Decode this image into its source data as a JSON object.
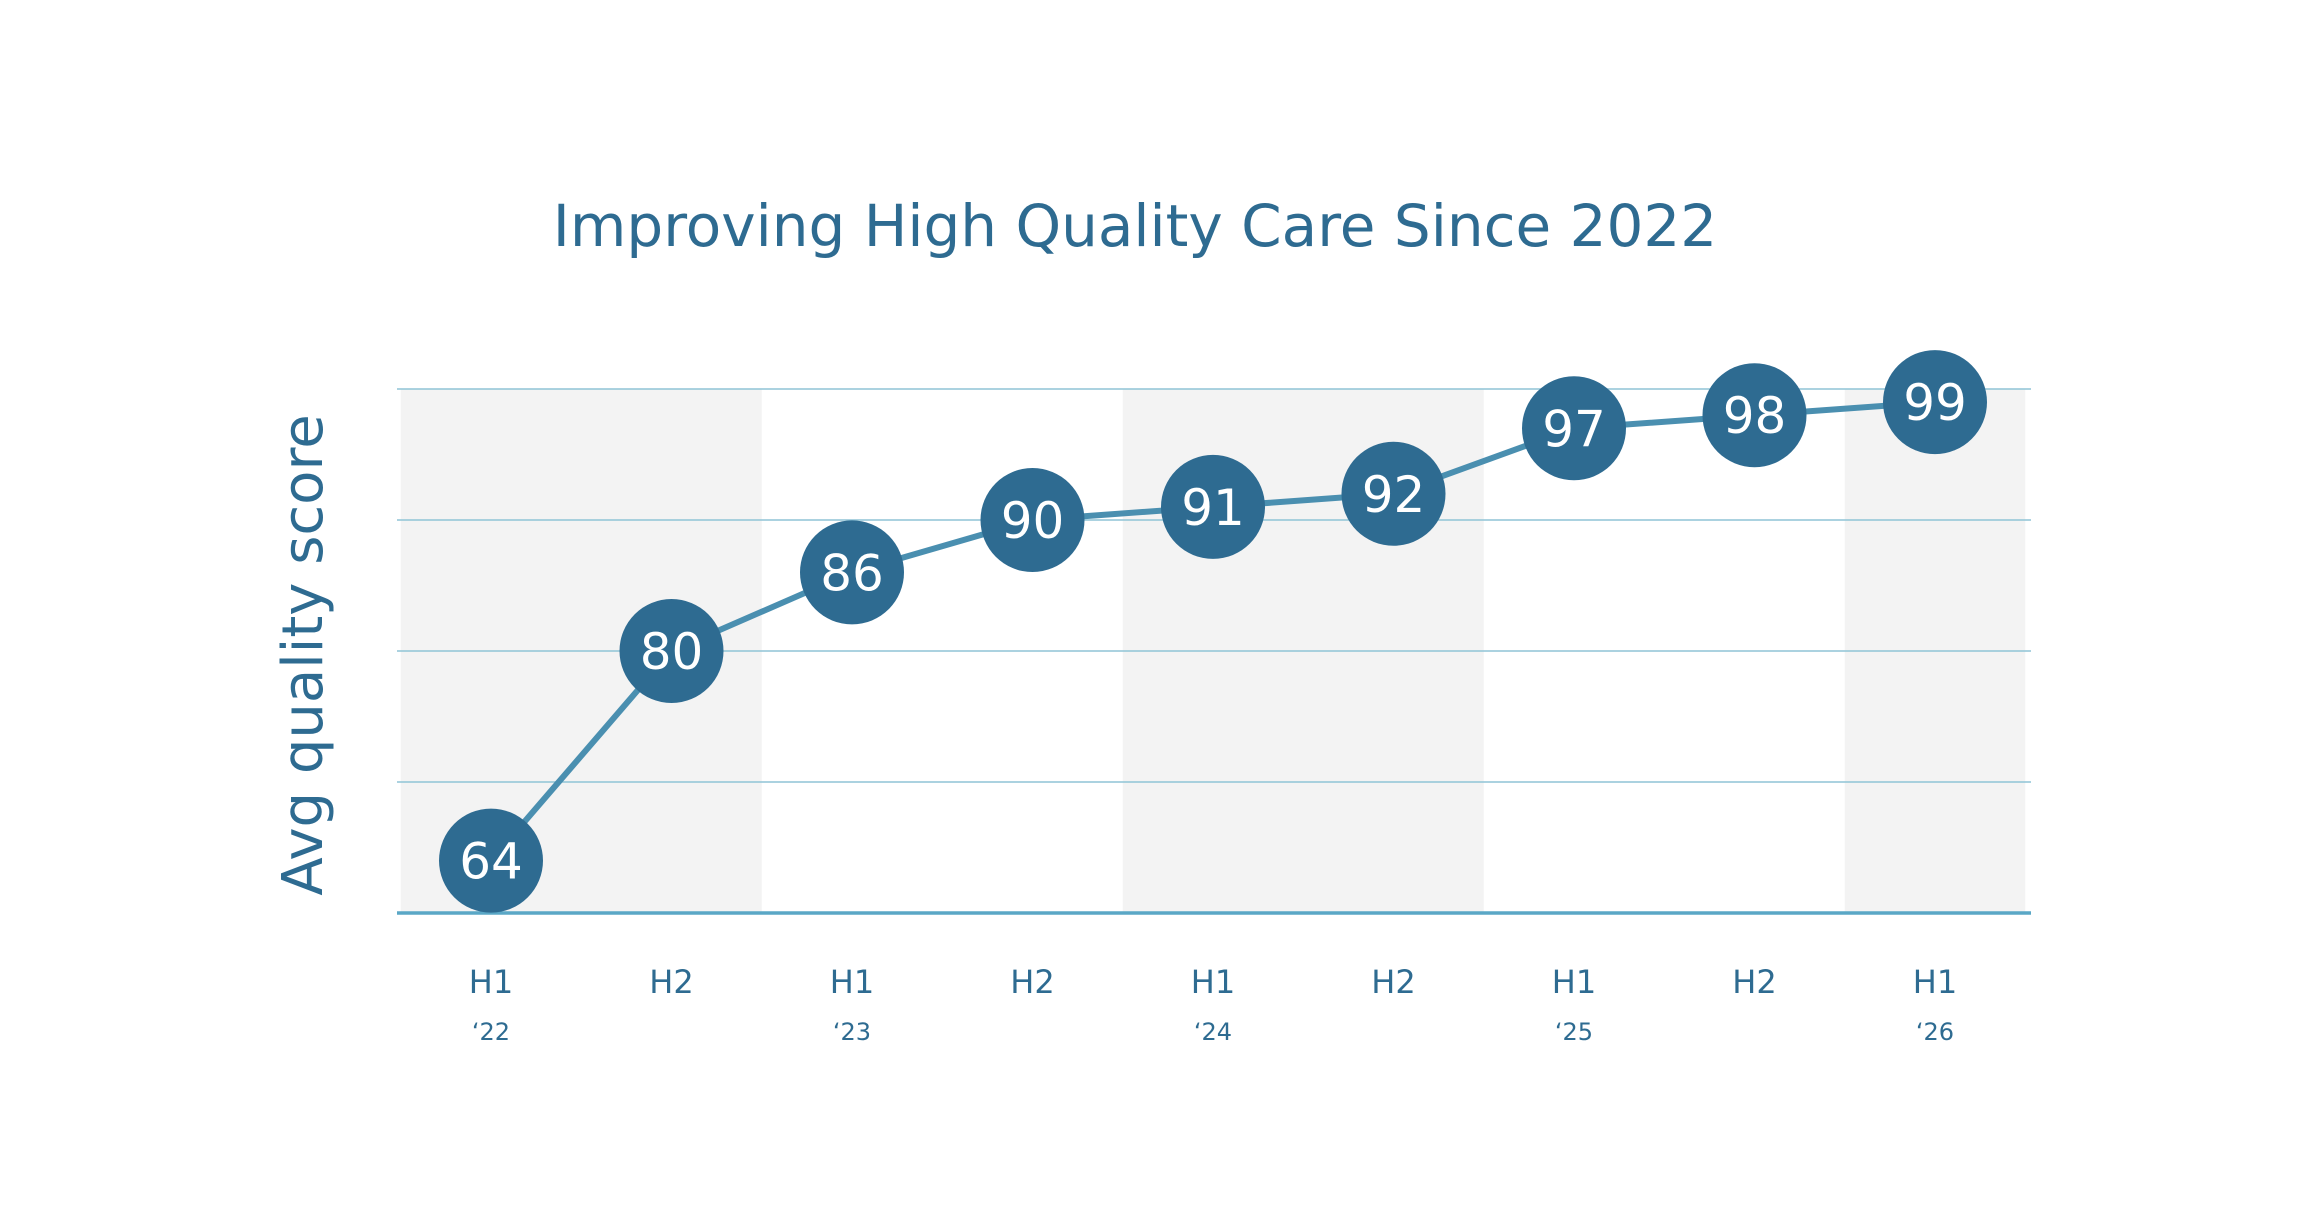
{
  "chart_data": {
    "type": "line",
    "title": "Improving High Quality Care Since 2022",
    "ylabel": "Avg quality score",
    "categories": [
      "H1",
      "H2",
      "H1",
      "H2",
      "H1",
      "H2",
      "H1",
      "H2",
      "H1"
    ],
    "year_labels": [
      "‘22",
      "",
      "‘23",
      "",
      "‘24",
      "",
      "‘25",
      "",
      "‘26"
    ],
    "values": [
      64,
      80,
      86,
      90,
      91,
      92,
      97,
      98,
      99
    ],
    "ylim": [
      60,
      100
    ],
    "ygrid": [
      70,
      80,
      90,
      100
    ],
    "shaded_bands": [
      [
        0,
        1
      ],
      [
        4,
        5
      ],
      [
        8,
        8
      ]
    ],
    "grid": true,
    "colors": {
      "text": "#2e6b91",
      "marker": "#2e6b91",
      "line": "#4a8fb0",
      "gridline": "#8fc4d6",
      "baseline": "#5aa7c6",
      "band": "#f3f3f3",
      "point_label": "#ffffff"
    }
  }
}
